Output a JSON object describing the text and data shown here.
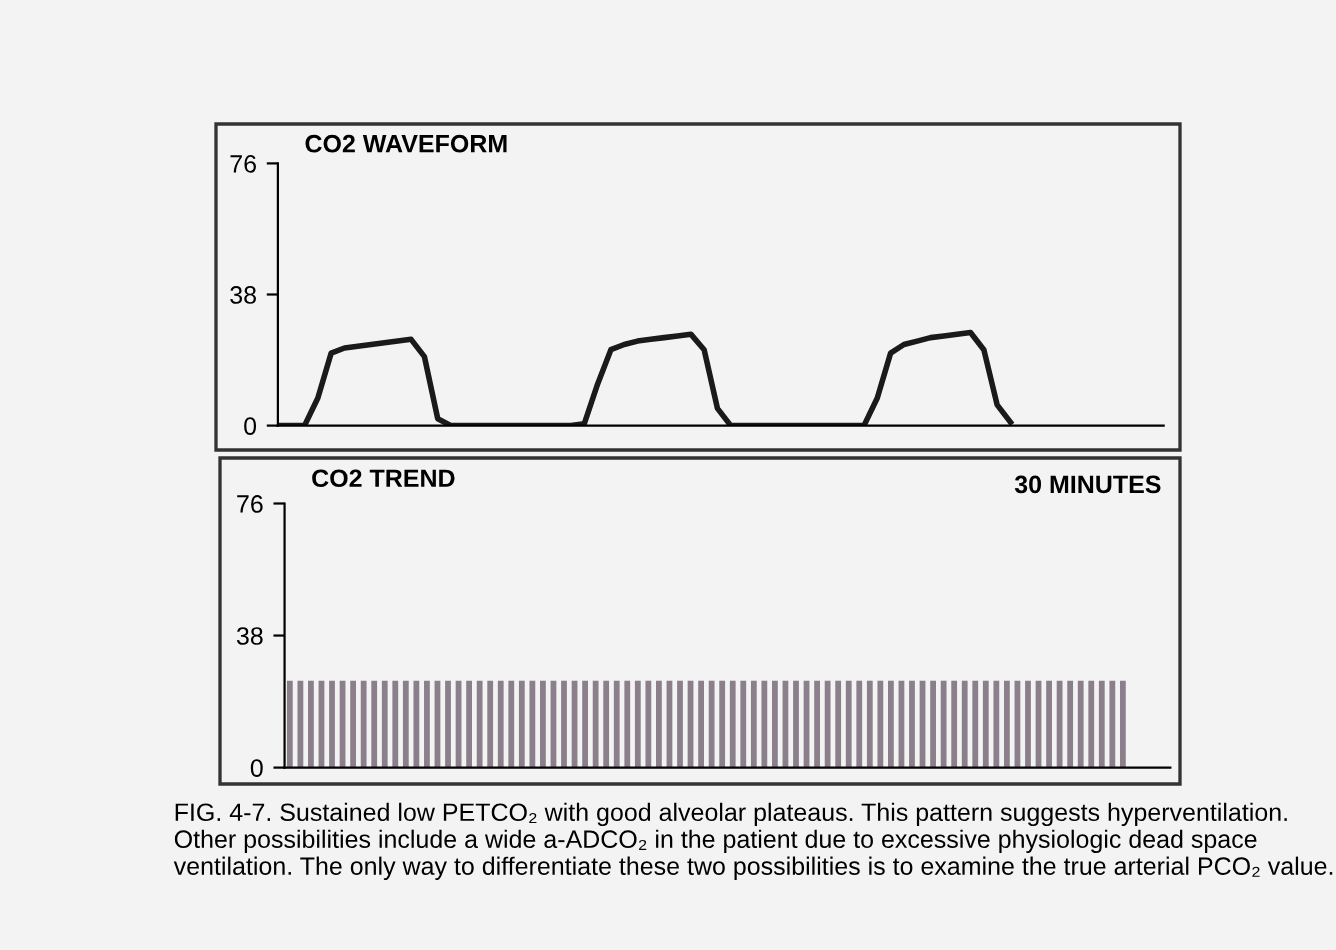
{
  "chart_data": [
    {
      "type": "line",
      "title": "CO2 WAVEFORM",
      "categories": [
        null,
        null,
        null,
        null,
        null,
        null,
        null,
        null,
        null,
        null,
        null,
        null,
        null,
        null,
        null,
        null,
        null,
        null,
        null,
        null,
        null,
        null,
        null,
        null,
        null,
        null,
        null,
        null,
        null,
        null,
        null,
        null,
        null,
        null,
        null,
        null,
        null,
        null,
        null,
        null,
        null,
        null,
        null,
        null,
        null,
        null,
        null,
        null,
        null,
        null,
        null,
        null,
        null,
        null,
        null,
        null,
        null,
        null,
        null,
        null,
        null,
        null,
        null,
        null,
        null,
        null,
        null
      ],
      "values": [
        0,
        0,
        0,
        8,
        21,
        22.5,
        23,
        23.5,
        24,
        24.5,
        25,
        20,
        2,
        0,
        0,
        0,
        0,
        0,
        0,
        0,
        0,
        0,
        0,
        0.5,
        12,
        22,
        23.5,
        24.5,
        25,
        25.5,
        26,
        26.5,
        22,
        5,
        0,
        0,
        0,
        0,
        0,
        0,
        0,
        0,
        0,
        0,
        0,
        8,
        21,
        23.5,
        24.5,
        25.5,
        26,
        26.5,
        27,
        22,
        6,
        1,
        null,
        null,
        null,
        null,
        null,
        null,
        null,
        null,
        null,
        null,
        null
      ],
      "color": "#1a1a1a",
      "ylim": [
        0,
        76
      ],
      "yticks": [
        0,
        38,
        76
      ],
      "grid": false,
      "tick_labels": "y",
      "line_style": "solid"
    },
    {
      "type": "bar",
      "title": "CO2 TREND",
      "categories": [
        null,
        null,
        null,
        null,
        null,
        null,
        null,
        null,
        null,
        null,
        null,
        null,
        null,
        null,
        null,
        null,
        null,
        null,
        null,
        null,
        null,
        null,
        null,
        null,
        null,
        null,
        null,
        null,
        null,
        null,
        null,
        null,
        null,
        null,
        null,
        null,
        null,
        null,
        null,
        null,
        null,
        null,
        null,
        null,
        null,
        null,
        null,
        null,
        null,
        null,
        null,
        null,
        null,
        null,
        null,
        null,
        null,
        null,
        null,
        null,
        null,
        null,
        null,
        null,
        null,
        null,
        null,
        null,
        null,
        null,
        null,
        null,
        null,
        null,
        null,
        null,
        null,
        null,
        null,
        null
      ],
      "values": [
        25,
        25,
        25,
        25,
        25,
        25,
        25,
        25,
        25,
        25,
        25,
        25,
        25,
        25,
        25,
        25,
        25,
        25,
        25,
        25,
        25,
        25,
        25,
        25,
        25,
        25,
        25,
        25,
        25,
        25,
        25,
        25,
        25,
        25,
        25,
        25,
        25,
        25,
        25,
        25,
        25,
        25,
        25,
        25,
        25,
        25,
        25,
        25,
        25,
        25,
        25,
        25,
        25,
        25,
        25,
        25,
        25,
        25,
        25,
        25,
        25,
        25,
        25,
        25,
        25,
        25,
        25,
        25,
        25,
        25,
        25,
        25,
        25,
        25,
        25,
        25,
        25,
        25,
        25,
        25
      ],
      "color": "#8c7f8c",
      "ylim": [
        0,
        76
      ],
      "yticks": [
        0,
        38,
        76
      ],
      "grid": false,
      "tick_labels": "y",
      "annotations": [
        "30 MINUTES",
        "FIG. 4-7. Sustained low PETCO₂ with good alveolar plateaus. This pattern suggests hyperventilation. Other possibilities include a wide a-ADCO₂ in the patient due to excessive physiologic dead space ventilation. The only way to differentiate these two possibilities is to examine the true arterial PCO₂ value."
      ]
    }
  ]
}
